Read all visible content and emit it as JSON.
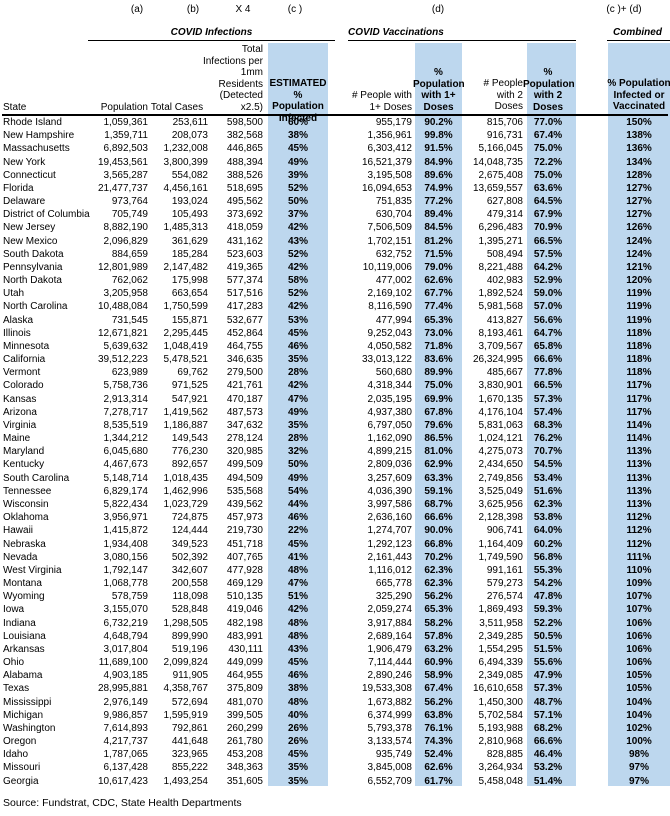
{
  "top_labels": {
    "a": "(a)",
    "b": "(b)",
    "x4": "X 4",
    "c": "(c )",
    "d": "(d)",
    "cd": "(c )+ (d)"
  },
  "sections": {
    "infections": "COVID Infections",
    "vaccinations": "COVID Vaccinations",
    "combined": "Combined"
  },
  "columns": {
    "state": "State",
    "population": "Population",
    "total_cases": "Total Cases",
    "per_1mm": "Total\nInfections per\n1mm\nResidents\n(Detected\nx2.5)",
    "pct_infected": "ESTIMATED %\nPopulation\nInfected",
    "doses1": "# People with\n1+ Doses",
    "pct_doses1": "%\nPopulation\nwith 1+\nDoses",
    "doses2": "# People\nwith 2\nDoses",
    "pct_doses2": "%\nPopulation\nwith 2\nDoses",
    "combined": "% Population\nInfected or\nVaccinated"
  },
  "colors": {
    "highlight": "#BDD7EE"
  },
  "source": "Source: Fundstrat, CDC, State Health Departments",
  "rows": [
    [
      "Rhode Island",
      "1,059,361",
      "253,611",
      "598,500",
      "60%",
      "955,179",
      "90.2%",
      "815,706",
      "77.0%",
      "150%"
    ],
    [
      "New Hampshire",
      "1,359,711",
      "208,073",
      "382,568",
      "38%",
      "1,356,961",
      "99.8%",
      "916,731",
      "67.4%",
      "138%"
    ],
    [
      "Massachusetts",
      "6,892,503",
      "1,232,008",
      "446,865",
      "45%",
      "6,303,412",
      "91.5%",
      "5,166,045",
      "75.0%",
      "136%"
    ],
    [
      "New York",
      "19,453,561",
      "3,800,399",
      "488,394",
      "49%",
      "16,521,379",
      "84.9%",
      "14,048,735",
      "72.2%",
      "134%"
    ],
    [
      "Connecticut",
      "3,565,287",
      "554,082",
      "388,526",
      "39%",
      "3,195,508",
      "89.6%",
      "2,675,408",
      "75.0%",
      "128%"
    ],
    [
      "Florida",
      "21,477,737",
      "4,456,161",
      "518,695",
      "52%",
      "16,094,653",
      "74.9%",
      "13,659,557",
      "63.6%",
      "127%"
    ],
    [
      "Delaware",
      "973,764",
      "193,024",
      "495,562",
      "50%",
      "751,835",
      "77.2%",
      "627,808",
      "64.5%",
      "127%"
    ],
    [
      "District of Columbia",
      "705,749",
      "105,493",
      "373,692",
      "37%",
      "630,704",
      "89.4%",
      "479,314",
      "67.9%",
      "127%"
    ],
    [
      "New Jersey",
      "8,882,190",
      "1,485,313",
      "418,059",
      "42%",
      "7,506,509",
      "84.5%",
      "6,296,483",
      "70.9%",
      "126%"
    ],
    [
      "New Mexico",
      "2,096,829",
      "361,629",
      "431,162",
      "43%",
      "1,702,151",
      "81.2%",
      "1,395,271",
      "66.5%",
      "124%"
    ],
    [
      "South Dakota",
      "884,659",
      "185,284",
      "523,603",
      "52%",
      "632,752",
      "71.5%",
      "508,494",
      "57.5%",
      "124%"
    ],
    [
      "Pennsylvania",
      "12,801,989",
      "2,147,482",
      "419,365",
      "42%",
      "10,119,006",
      "79.0%",
      "8,221,488",
      "64.2%",
      "121%"
    ],
    [
      "North Dakota",
      "762,062",
      "175,998",
      "577,374",
      "58%",
      "477,002",
      "62.6%",
      "402,983",
      "52.9%",
      "120%"
    ],
    [
      "Utah",
      "3,205,958",
      "663,654",
      "517,516",
      "52%",
      "2,169,102",
      "67.7%",
      "1,892,524",
      "59.0%",
      "119%"
    ],
    [
      "North Carolina",
      "10,488,084",
      "1,750,599",
      "417,283",
      "42%",
      "8,116,590",
      "77.4%",
      "5,981,568",
      "57.0%",
      "119%"
    ],
    [
      "Alaska",
      "731,545",
      "155,871",
      "532,677",
      "53%",
      "477,994",
      "65.3%",
      "413,827",
      "56.6%",
      "119%"
    ],
    [
      "Illinois",
      "12,671,821",
      "2,295,445",
      "452,864",
      "45%",
      "9,252,043",
      "73.0%",
      "8,193,461",
      "64.7%",
      "118%"
    ],
    [
      "Minnesota",
      "5,639,632",
      "1,048,419",
      "464,755",
      "46%",
      "4,050,582",
      "71.8%",
      "3,709,567",
      "65.8%",
      "118%"
    ],
    [
      "California",
      "39,512,223",
      "5,478,521",
      "346,635",
      "35%",
      "33,013,122",
      "83.6%",
      "26,324,995",
      "66.6%",
      "118%"
    ],
    [
      "Vermont",
      "623,989",
      "69,762",
      "279,500",
      "28%",
      "560,680",
      "89.9%",
      "485,667",
      "77.8%",
      "118%"
    ],
    [
      "Colorado",
      "5,758,736",
      "971,525",
      "421,761",
      "42%",
      "4,318,344",
      "75.0%",
      "3,830,901",
      "66.5%",
      "117%"
    ],
    [
      "Kansas",
      "2,913,314",
      "547,921",
      "470,187",
      "47%",
      "2,035,195",
      "69.9%",
      "1,670,135",
      "57.3%",
      "117%"
    ],
    [
      "Arizona",
      "7,278,717",
      "1,419,562",
      "487,573",
      "49%",
      "4,937,380",
      "67.8%",
      "4,176,104",
      "57.4%",
      "117%"
    ],
    [
      "Virginia",
      "8,535,519",
      "1,186,887",
      "347,632",
      "35%",
      "6,797,050",
      "79.6%",
      "5,831,063",
      "68.3%",
      "114%"
    ],
    [
      "Maine",
      "1,344,212",
      "149,543",
      "278,124",
      "28%",
      "1,162,090",
      "86.5%",
      "1,024,121",
      "76.2%",
      "114%"
    ],
    [
      "Maryland",
      "6,045,680",
      "776,230",
      "320,985",
      "32%",
      "4,899,215",
      "81.0%",
      "4,275,073",
      "70.7%",
      "113%"
    ],
    [
      "Kentucky",
      "4,467,673",
      "892,657",
      "499,509",
      "50%",
      "2,809,036",
      "62.9%",
      "2,434,650",
      "54.5%",
      "113%"
    ],
    [
      "South Carolina",
      "5,148,714",
      "1,018,435",
      "494,509",
      "49%",
      "3,257,609",
      "63.3%",
      "2,749,856",
      "53.4%",
      "113%"
    ],
    [
      "Tennessee",
      "6,829,174",
      "1,462,996",
      "535,568",
      "54%",
      "4,036,390",
      "59.1%",
      "3,525,049",
      "51.6%",
      "113%"
    ],
    [
      "Wisconsin",
      "5,822,434",
      "1,023,729",
      "439,562",
      "44%",
      "3,997,586",
      "68.7%",
      "3,625,956",
      "62.3%",
      "113%"
    ],
    [
      "Oklahoma",
      "3,956,971",
      "724,875",
      "457,973",
      "46%",
      "2,636,160",
      "66.6%",
      "2,128,398",
      "53.8%",
      "112%"
    ],
    [
      "Hawaii",
      "1,415,872",
      "124,444",
      "219,730",
      "22%",
      "1,274,707",
      "90.0%",
      "906,741",
      "64.0%",
      "112%"
    ],
    [
      "Nebraska",
      "1,934,408",
      "349,523",
      "451,718",
      "45%",
      "1,292,123",
      "66.8%",
      "1,164,409",
      "60.2%",
      "112%"
    ],
    [
      "Nevada",
      "3,080,156",
      "502,392",
      "407,765",
      "41%",
      "2,161,443",
      "70.2%",
      "1,749,590",
      "56.8%",
      "111%"
    ],
    [
      "West Virginia",
      "1,792,147",
      "342,607",
      "477,928",
      "48%",
      "1,116,012",
      "62.3%",
      "991,161",
      "55.3%",
      "110%"
    ],
    [
      "Montana",
      "1,068,778",
      "200,558",
      "469,129",
      "47%",
      "665,778",
      "62.3%",
      "579,273",
      "54.2%",
      "109%"
    ],
    [
      "Wyoming",
      "578,759",
      "118,098",
      "510,135",
      "51%",
      "325,290",
      "56.2%",
      "276,574",
      "47.8%",
      "107%"
    ],
    [
      "Iowa",
      "3,155,070",
      "528,848",
      "419,046",
      "42%",
      "2,059,274",
      "65.3%",
      "1,869,493",
      "59.3%",
      "107%"
    ],
    [
      "Indiana",
      "6,732,219",
      "1,298,505",
      "482,198",
      "48%",
      "3,917,884",
      "58.2%",
      "3,511,958",
      "52.2%",
      "106%"
    ],
    [
      "Louisiana",
      "4,648,794",
      "899,990",
      "483,991",
      "48%",
      "2,689,164",
      "57.8%",
      "2,349,285",
      "50.5%",
      "106%"
    ],
    [
      "Arkansas",
      "3,017,804",
      "519,196",
      "430,111",
      "43%",
      "1,906,479",
      "63.2%",
      "1,554,295",
      "51.5%",
      "106%"
    ],
    [
      "Ohio",
      "11,689,100",
      "2,099,824",
      "449,099",
      "45%",
      "7,114,444",
      "60.9%",
      "6,494,339",
      "55.6%",
      "106%"
    ],
    [
      "Alabama",
      "4,903,185",
      "911,905",
      "464,955",
      "46%",
      "2,890,246",
      "58.9%",
      "2,349,085",
      "47.9%",
      "105%"
    ],
    [
      "Texas",
      "28,995,881",
      "4,358,767",
      "375,809",
      "38%",
      "19,533,308",
      "67.4%",
      "16,610,658",
      "57.3%",
      "105%"
    ],
    [
      "Mississippi",
      "2,976,149",
      "572,694",
      "481,070",
      "48%",
      "1,673,882",
      "56.2%",
      "1,450,300",
      "48.7%",
      "104%"
    ],
    [
      "Michigan",
      "9,986,857",
      "1,595,919",
      "399,505",
      "40%",
      "6,374,999",
      "63.8%",
      "5,702,584",
      "57.1%",
      "104%"
    ],
    [
      "Washington",
      "7,614,893",
      "792,861",
      "260,299",
      "26%",
      "5,793,378",
      "76.1%",
      "5,193,988",
      "68.2%",
      "102%"
    ],
    [
      "Oregon",
      "4,217,737",
      "441,648",
      "261,780",
      "26%",
      "3,133,574",
      "74.3%",
      "2,810,968",
      "66.6%",
      "100%"
    ],
    [
      "Idaho",
      "1,787,065",
      "323,965",
      "453,208",
      "45%",
      "935,749",
      "52.4%",
      "828,885",
      "46.4%",
      "98%"
    ],
    [
      "Missouri",
      "6,137,428",
      "855,222",
      "348,363",
      "35%",
      "3,845,008",
      "62.6%",
      "3,264,934",
      "53.2%",
      "97%"
    ],
    [
      "Georgia",
      "10,617,423",
      "1,493,254",
      "351,605",
      "35%",
      "6,552,709",
      "61.7%",
      "5,458,048",
      "51.4%",
      "97%"
    ]
  ]
}
